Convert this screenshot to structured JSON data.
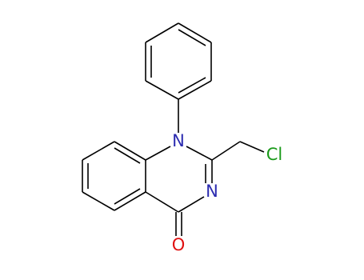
{
  "atoms": {
    "n1": "N",
    "n3": "N",
    "cl": "Cl",
    "o": "O"
  }
}
